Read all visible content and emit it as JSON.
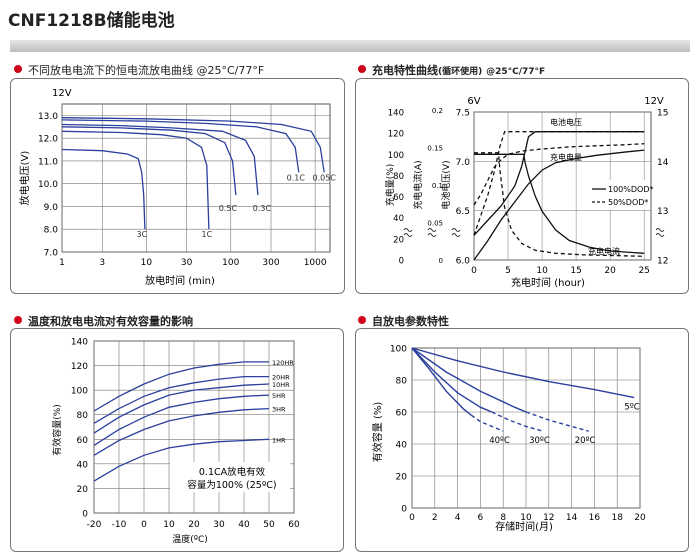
{
  "page_title": "CNF1218B储能电池",
  "colors": {
    "curve": "#2b3f9e",
    "grid": "#777777",
    "accent": "#d0021b"
  },
  "chart_data": [
    {
      "type": "line",
      "section_title": "不同放电电流下的恒电流放电曲线 @25°C/77°F",
      "title": "",
      "xlabel": "放电时间 (min)",
      "ylabel": "放电电压(V)",
      "ylabel_top": "12V",
      "xscale": "log",
      "xlim": [
        1,
        1500
      ],
      "ylim": [
        7.0,
        13.5
      ],
      "x_ticks": [
        1,
        3,
        10,
        30,
        100,
        300,
        1000
      ],
      "y_ticks": [
        7.0,
        8.0,
        9.0,
        10.0,
        11.0,
        12.0,
        13.0
      ],
      "series": [
        {
          "name": "3C",
          "x": [
            1,
            3,
            6,
            8,
            8.8,
            9.3,
            9.6
          ],
          "y": [
            11.5,
            11.45,
            11.3,
            11.1,
            10.5,
            9.5,
            8.0
          ]
        },
        {
          "name": "1C",
          "x": [
            1,
            5,
            15,
            30,
            45,
            52,
            55
          ],
          "y": [
            12.3,
            12.25,
            12.15,
            12.0,
            11.6,
            10.8,
            8.0
          ]
        },
        {
          "name": "0.5C",
          "x": [
            1,
            5,
            20,
            50,
            85,
            105,
            115
          ],
          "y": [
            12.5,
            12.45,
            12.35,
            12.2,
            11.8,
            11.0,
            9.5
          ]
        },
        {
          "name": "0.3C",
          "x": [
            1,
            5,
            20,
            80,
            150,
            190,
            210
          ],
          "y": [
            12.6,
            12.55,
            12.45,
            12.3,
            11.9,
            11.2,
            9.5
          ]
        },
        {
          "name": "0.1C",
          "x": [
            1,
            10,
            50,
            200,
            450,
            580,
            640
          ],
          "y": [
            12.8,
            12.75,
            12.65,
            12.5,
            12.2,
            11.6,
            10.5
          ]
        },
        {
          "name": "0.05C",
          "x": [
            1,
            10,
            100,
            400,
            900,
            1150,
            1280
          ],
          "y": [
            12.9,
            12.85,
            12.75,
            12.6,
            12.3,
            11.6,
            10.5
          ]
        }
      ]
    },
    {
      "type": "line",
      "section_title": "充电特性曲线",
      "section_note": "(循环使用)",
      "section_condition": "@25°C/77°F",
      "title": "",
      "xlabel": "充电时间 (hour)",
      "xlim": [
        0,
        26
      ],
      "x_ticks": [
        0,
        5,
        10,
        15,
        20,
        25
      ],
      "left_axis_1": {
        "label": "充电量(%)",
        "ticks": [
          0,
          20,
          40,
          60,
          80,
          100,
          120,
          140
        ]
      },
      "left_axis_2": {
        "label": "充电电流(A)",
        "ticks": [
          "0",
          "0.05",
          "0.1",
          "0.15",
          "0.2"
        ]
      },
      "left_axis_3": {
        "label": "电池电压(V)",
        "top_label": "6V",
        "ticks": [
          6.0,
          6.5,
          7.0,
          7.5
        ]
      },
      "right_axis": {
        "top_label": "12V",
        "ticks": [
          12,
          13,
          14,
          15
        ]
      },
      "annotations": [
        "电池电压",
        "充电电量",
        "充电电流"
      ],
      "legend": [
        "100%DOD*",
        "50%DOD*"
      ],
      "series": [
        {
          "name": "100%DOD*",
          "style": "solid",
          "quantity": "电池电压",
          "x": [
            0,
            2,
            4,
            6,
            7,
            8,
            9,
            12,
            16,
            20,
            25
          ],
          "y": [
            12.5,
            12.8,
            13.1,
            13.5,
            13.9,
            14.5,
            14.6,
            14.6,
            14.6,
            14.6,
            14.6
          ]
        },
        {
          "name": "50%DOD*",
          "style": "dashed",
          "quantity": "电池电压",
          "x": [
            0,
            1,
            2,
            3,
            3.8,
            4.5,
            5.5,
            8,
            12,
            16,
            20,
            25
          ],
          "y": [
            12.5,
            12.9,
            13.3,
            13.8,
            14.3,
            14.6,
            14.6,
            14.6,
            14.6,
            14.6,
            14.6,
            14.6
          ]
        },
        {
          "name": "100%DOD*",
          "style": "solid",
          "quantity": "充电量",
          "x": [
            0,
            2,
            4,
            6,
            8,
            10,
            12,
            15,
            18,
            22,
            25
          ],
          "y": [
            0,
            18,
            38,
            55,
            72,
            85,
            92,
            96,
            99,
            102,
            104
          ]
        },
        {
          "name": "50%DOD*",
          "style": "dashed",
          "quantity": "充电量",
          "x": [
            0,
            1,
            2,
            3,
            4,
            5,
            7,
            10,
            14,
            18,
            22,
            25
          ],
          "y": [
            52,
            62,
            75,
            88,
            95,
            100,
            103,
            105,
            107,
            108,
            109,
            110
          ]
        },
        {
          "name": "100%DOD*",
          "style": "solid",
          "quantity": "充电电流",
          "x": [
            0,
            7.3,
            7.5,
            8,
            9,
            10,
            12,
            14,
            17,
            20,
            25
          ],
          "y": [
            0.141,
            0.141,
            0.13,
            0.112,
            0.085,
            0.065,
            0.04,
            0.026,
            0.017,
            0.012,
            0.009
          ]
        },
        {
          "name": "50%DOD*",
          "style": "dashed",
          "quantity": "充电电流",
          "x": [
            0,
            3.6,
            3.8,
            4.5,
            5.5,
            7,
            9,
            12,
            16,
            20,
            25
          ],
          "y": [
            0.143,
            0.143,
            0.12,
            0.07,
            0.04,
            0.022,
            0.013,
            0.009,
            0.007,
            0.006,
            0.005
          ]
        }
      ]
    },
    {
      "type": "line",
      "section_title": "温度和放电电流对有效容量的影响",
      "title": "",
      "xlabel": "温度(ºC)",
      "ylabel": "有效容量(%)",
      "xlim": [
        -20,
        60
      ],
      "ylim": [
        0,
        140
      ],
      "x_ticks": [
        -20,
        -10,
        0,
        10,
        20,
        30,
        40,
        50,
        60
      ],
      "y_ticks": [
        0,
        20,
        40,
        60,
        80,
        100,
        120,
        140
      ],
      "note_line1": "0.1CA放电有效",
      "note_line2": "容量为100% (25ºC)",
      "series": [
        {
          "name": "120HR",
          "x": [
            -20,
            -10,
            0,
            10,
            20,
            30,
            40,
            50
          ],
          "y": [
            83,
            95,
            105,
            113,
            118,
            121,
            123,
            123
          ]
        },
        {
          "name": "20HR",
          "x": [
            -20,
            -10,
            0,
            10,
            20,
            30,
            40,
            50
          ],
          "y": [
            73,
            85,
            95,
            102,
            106,
            109,
            111,
            111
          ]
        },
        {
          "name": "10HR",
          "x": [
            -20,
            -10,
            0,
            10,
            20,
            30,
            40,
            50
          ],
          "y": [
            65,
            78,
            88,
            96,
            100,
            102,
            104,
            105
          ]
        },
        {
          "name": "5HR",
          "x": [
            -20,
            -10,
            0,
            10,
            20,
            30,
            40,
            50
          ],
          "y": [
            55,
            68,
            78,
            86,
            90,
            93,
            95,
            96
          ]
        },
        {
          "name": "3HR",
          "x": [
            -20,
            -10,
            0,
            10,
            20,
            30,
            40,
            50
          ],
          "y": [
            47,
            59,
            68,
            75,
            79,
            82,
            84,
            85
          ]
        },
        {
          "name": "1HR",
          "x": [
            -20,
            -10,
            0,
            10,
            20,
            30,
            40,
            50
          ],
          "y": [
            26,
            38,
            47,
            53,
            56,
            58,
            59,
            60
          ]
        }
      ]
    },
    {
      "type": "line",
      "section_title": "自放电参数特性",
      "title": "",
      "xlabel": "存储时间(月)",
      "ylabel": "有效容量 (%)",
      "xlim": [
        0,
        20
      ],
      "ylim": [
        0,
        100
      ],
      "x_ticks": [
        0,
        2,
        4,
        6,
        8,
        10,
        12,
        14,
        16,
        18,
        20
      ],
      "y_ticks": [
        0,
        20,
        40,
        60,
        80,
        100
      ],
      "series": [
        {
          "name": "5ºC",
          "x": [
            0,
            4,
            8,
            12,
            16,
            19.5
          ],
          "y": [
            100,
            92,
            85,
            79,
            74,
            69
          ]
        },
        {
          "name": "20ºC",
          "x": [
            0,
            3,
            6,
            9,
            10,
            12,
            14,
            15.5
          ],
          "y": [
            100,
            85,
            73,
            63,
            60,
            55,
            51,
            48
          ]
        },
        {
          "name": "30ºC",
          "x": [
            0,
            2,
            4,
            6,
            7,
            8.5,
            10,
            11.5
          ],
          "y": [
            100,
            85,
            72,
            63,
            60,
            55,
            51,
            48
          ]
        },
        {
          "name": "40ºC",
          "x": [
            0,
            1.5,
            3,
            4.5,
            5.2,
            6,
            7,
            8
          ],
          "y": [
            100,
            87,
            73,
            62,
            58,
            54,
            51,
            48
          ]
        }
      ]
    }
  ]
}
